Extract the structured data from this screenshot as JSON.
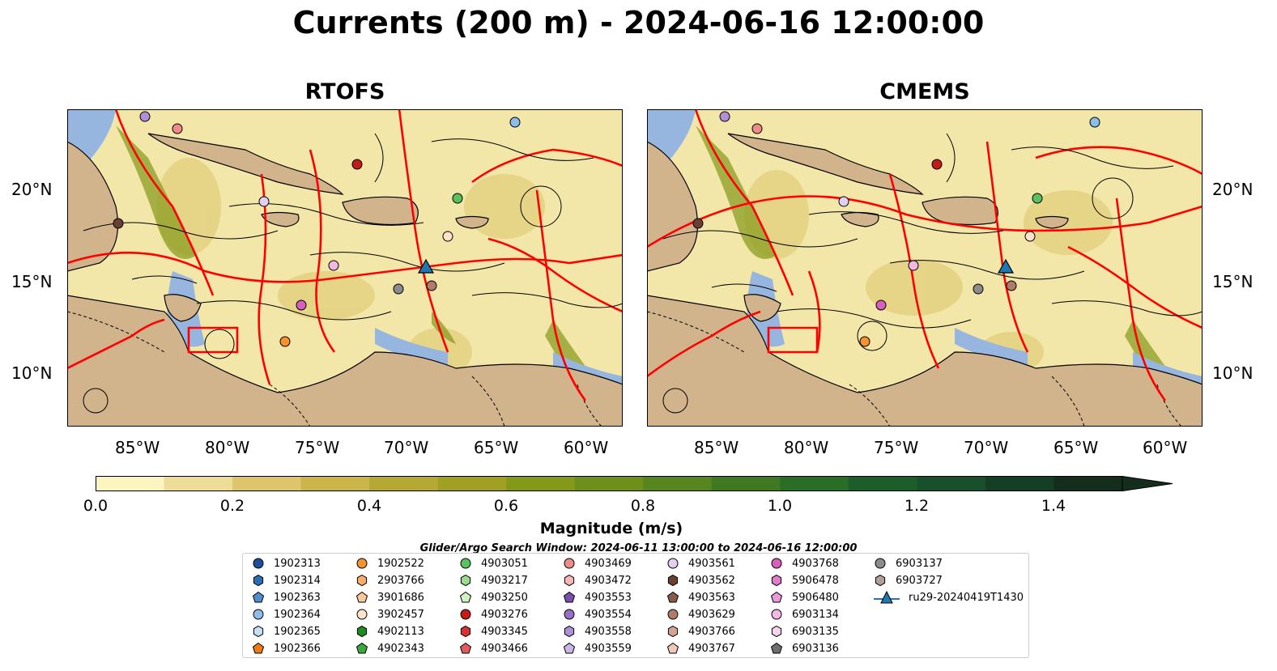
{
  "title": "Currents (200 m) - 2024-06-16 12:00:00",
  "panels": [
    {
      "title": "RTOFS"
    },
    {
      "title": "CMEMS"
    }
  ],
  "axes": {
    "x_ticks": [
      "85°W",
      "80°W",
      "75°W",
      "70°W",
      "65°W",
      "60°W"
    ],
    "y_ticks": [
      "20°N",
      "15°N",
      "10°N"
    ]
  },
  "colorbar": {
    "label": "Magnitude (m/s)",
    "ticks": [
      "0.0",
      "0.2",
      "0.4",
      "0.6",
      "0.8",
      "1.0",
      "1.2",
      "1.4"
    ],
    "levels": [
      0.0,
      0.1,
      0.2,
      0.3,
      0.4,
      0.5,
      0.6,
      0.7,
      0.8,
      0.9,
      1.0,
      1.1,
      1.2,
      1.3,
      1.4,
      1.5
    ],
    "colors": [
      "#fcf5bf",
      "#eedd97",
      "#dcc56b",
      "#c9b54a",
      "#b5a834",
      "#9fa024",
      "#84981a",
      "#6d8f1c",
      "#578520",
      "#3f7a22",
      "#2a6d27",
      "#1b5e2a",
      "#17502a",
      "#153f24",
      "#142d1d"
    ]
  },
  "search_window": "Glider/Argo Search Window: 2024-06-11 13:00:00 to 2024-06-16 12:00:00",
  "map_colors": {
    "ocean_shelf": "#96b6e0",
    "land": "#d1b38c",
    "tracks": "#ff0000"
  },
  "legend": [
    {
      "label": "1902313",
      "color": "#1f4f9c",
      "marker": "circle"
    },
    {
      "label": "1902314",
      "color": "#2a6fb5",
      "marker": "hexagon"
    },
    {
      "label": "1902363",
      "color": "#4f8fd0",
      "marker": "pentagon"
    },
    {
      "label": "1902364",
      "color": "#8ebde8",
      "marker": "circle"
    },
    {
      "label": "1902365",
      "color": "#c5e0f5",
      "marker": "hexagon"
    },
    {
      "label": "1902366",
      "color": "#ee7a10",
      "marker": "pentagon"
    },
    {
      "label": "1902522",
      "color": "#f59331",
      "marker": "circle"
    },
    {
      "label": "2903766",
      "color": "#f8ad69",
      "marker": "hexagon"
    },
    {
      "label": "3901686",
      "color": "#fbc99a",
      "marker": "pentagon"
    },
    {
      "label": "3902457",
      "color": "#fde3c9",
      "marker": "circle"
    },
    {
      "label": "4902113",
      "color": "#1d8a25",
      "marker": "hexagon"
    },
    {
      "label": "4902343",
      "color": "#3aa83f",
      "marker": "pentagon"
    },
    {
      "label": "4903051",
      "color": "#5cc05e",
      "marker": "circle"
    },
    {
      "label": "4903217",
      "color": "#98dc90",
      "marker": "hexagon"
    },
    {
      "label": "4903250",
      "color": "#d2f2c6",
      "marker": "pentagon"
    },
    {
      "label": "4903276",
      "color": "#c41b1b",
      "marker": "circle"
    },
    {
      "label": "4903345",
      "color": "#d63434",
      "marker": "hexagon"
    },
    {
      "label": "4903466",
      "color": "#e25a5a",
      "marker": "pentagon"
    },
    {
      "label": "4903469",
      "color": "#f08b8b",
      "marker": "circle"
    },
    {
      "label": "4903472",
      "color": "#f7b7b7",
      "marker": "hexagon"
    },
    {
      "label": "4903553",
      "color": "#7b4fae",
      "marker": "pentagon"
    },
    {
      "label": "4903554",
      "color": "#9670c6",
      "marker": "circle"
    },
    {
      "label": "4903558",
      "color": "#ae8fd8",
      "marker": "hexagon"
    },
    {
      "label": "4903559",
      "color": "#cbb5ea",
      "marker": "pentagon"
    },
    {
      "label": "4903561",
      "color": "#e1d0f4",
      "marker": "circle"
    },
    {
      "label": "4903562",
      "color": "#6b4033",
      "marker": "hexagon"
    },
    {
      "label": "4903563",
      "color": "#8c5a4a",
      "marker": "pentagon"
    },
    {
      "label": "4903629",
      "color": "#b07b6a",
      "marker": "circle"
    },
    {
      "label": "4903766",
      "color": "#d3a493",
      "marker": "hexagon"
    },
    {
      "label": "4903767",
      "color": "#efc8ba",
      "marker": "pentagon"
    },
    {
      "label": "4903768",
      "color": "#d85fbd",
      "marker": "circle"
    },
    {
      "label": "5906478",
      "color": "#e07ccb",
      "marker": "hexagon"
    },
    {
      "label": "5906480",
      "color": "#ea9bd7",
      "marker": "pentagon"
    },
    {
      "label": "6903134",
      "color": "#f3b8e2",
      "marker": "circle"
    },
    {
      "label": "6903135",
      "color": "#f8d3ec",
      "marker": "hexagon"
    },
    {
      "label": "6903136",
      "color": "#6e6e6e",
      "marker": "pentagon"
    },
    {
      "label": "6903137",
      "color": "#8c8c8c",
      "marker": "circle"
    },
    {
      "label": "6903727",
      "color": "#b0a096",
      "marker": "hexagon"
    },
    {
      "label": "ru29-20240419T1430",
      "color": "#1f77b4",
      "marker": "triangle"
    }
  ]
}
